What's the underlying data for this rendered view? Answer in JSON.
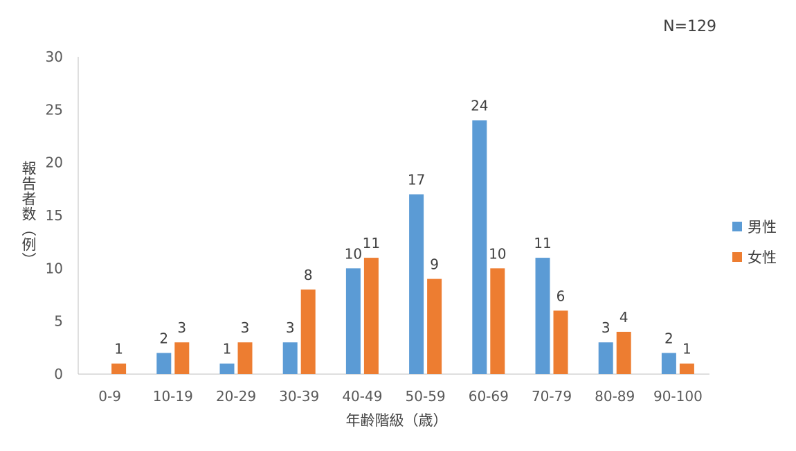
{
  "chart_data": {
    "type": "bar",
    "categories": [
      "0-9",
      "10-19",
      "20-29",
      "30-39",
      "40-49",
      "50-59",
      "60-69",
      "70-79",
      "80-89",
      "90-100"
    ],
    "series": [
      {
        "name": "男性",
        "color": "#5B9BD5",
        "values": [
          0,
          2,
          1,
          3,
          10,
          17,
          24,
          11,
          3,
          2
        ]
      },
      {
        "name": "女性",
        "color": "#ED7D31",
        "values": [
          1,
          3,
          3,
          8,
          11,
          9,
          10,
          6,
          4,
          1
        ]
      }
    ],
    "data_labels": [
      [
        null,
        "2",
        "1",
        "3",
        "10",
        "17",
        "24",
        "11",
        "3",
        "2"
      ],
      [
        "1",
        "3",
        "3",
        "8",
        "11",
        "9",
        "10",
        "6",
        "4",
        "1"
      ]
    ],
    "xlabel": "年齢階級（歳）",
    "ylabel": "報告者数（例）",
    "ylim": [
      0,
      30
    ],
    "yticks": [
      0,
      5,
      10,
      15,
      20,
      25,
      30
    ],
    "grid": false,
    "legend_position": "right",
    "annotation": "N=129"
  }
}
